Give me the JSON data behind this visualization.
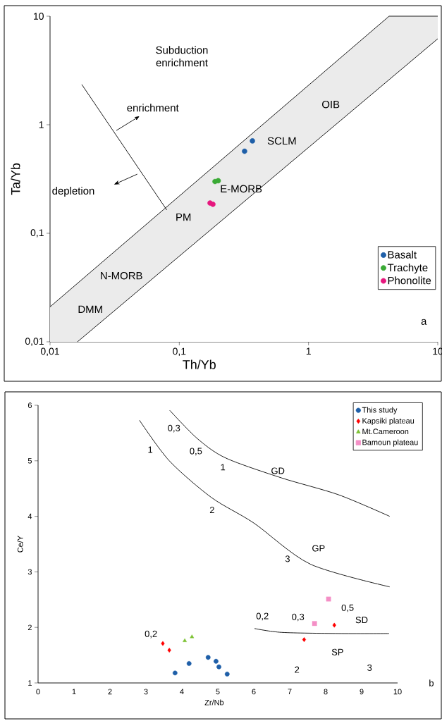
{
  "chart_data": [
    {
      "type": "scatter",
      "xlabel": "Th/Yb",
      "ylabel": "Ta/Yb",
      "log": "xy",
      "legend": "bottom right",
      "xlim": [
        0.01,
        10
      ],
      "ylim": [
        0.01,
        10
      ],
      "xticks": [
        {
          "value": 0.01,
          "label": "0,01"
        },
        {
          "value": 0.1,
          "label": "0,1"
        },
        1,
        10
      ],
      "yticks": [
        {
          "value": 0.01,
          "label": "0,01"
        },
        {
          "value": 0.1,
          "label": "0,1"
        },
        1,
        10
      ],
      "series": [
        {
          "type": "area",
          "color": "#ebebeb",
          "x": [
            0.01,
            4.2,
            10
          ],
          "values": [
            0.021,
            10,
            10
          ]
        },
        {
          "type": "area",
          "color": "#ffffff",
          "x": [
            0.0163,
            10
          ],
          "values": [
            0.01,
            6.2
          ]
        },
        {
          "type": "line",
          "color": "#000000",
          "x": [
            0.0176,
            0.08
          ],
          "values": [
            2.35,
            0.164
          ]
        },
        {
          "name": "Basalt",
          "marker": "circle",
          "color": "#1f5fa8",
          "x": [
            0.368,
            0.32
          ],
          "values": [
            0.71,
            0.57
          ]
        },
        {
          "name": "Trachyte",
          "marker": "circle",
          "color": "#3aaa35",
          "x": [
            0.189,
            0.2
          ],
          "values": [
            0.3,
            0.305
          ]
        },
        {
          "name": "Phonolite",
          "marker": "circle",
          "color": "#e6177e",
          "x": [
            0.173,
            0.182
          ],
          "values": [
            0.19,
            0.185
          ]
        }
      ],
      "annotations": [
        "Subduction enrichment",
        "enrichment",
        "depletion",
        "OIB",
        "SCLM",
        "E-MORB",
        "PM",
        "N-MORB",
        "DMM",
        "a"
      ]
    },
    {
      "type": "scatter",
      "xlabel": "Zr/Nb",
      "ylabel": "Ce/Y",
      "legend": "top right",
      "xlim": [
        0,
        10
      ],
      "ylim": [
        1,
        6
      ],
      "xticks": [
        0,
        1,
        2,
        3,
        4,
        5,
        6,
        7,
        8,
        9,
        10
      ],
      "yticks": [
        1,
        2,
        3,
        4,
        5,
        6
      ],
      "series": [
        {
          "type": "line",
          "color": "#000000",
          "x": [
            3.66,
            4.43,
            5.22,
            6.78,
            8.35,
            9.78
          ],
          "values": [
            5.91,
            5.4,
            5.05,
            4.69,
            4.39,
            4.0
          ]
        },
        {
          "type": "line",
          "color": "#000000",
          "x": [
            2.82,
            3.65,
            4.82,
            6.0,
            7.57,
            9.78
          ],
          "values": [
            5.73,
            5.0,
            4.34,
            3.88,
            3.14,
            2.73
          ]
        },
        {
          "type": "line",
          "color": "#000000",
          "x": [
            6.02,
            6.78,
            8.35,
            9.76
          ],
          "values": [
            1.98,
            1.91,
            1.89,
            1.89
          ]
        },
        {
          "name": "This study",
          "marker": "circle",
          "color": "#1f5fa8",
          "x": [
            3.81,
            4.2,
            4.73,
            4.95,
            5.03,
            5.26
          ],
          "values": [
            1.18,
            1.35,
            1.46,
            1.39,
            1.29,
            1.16
          ]
        },
        {
          "name": "Kapsiki plateau",
          "marker": "diamond",
          "color": "#ff0000",
          "x": [
            3.47,
            3.65,
            7.4,
            8.24
          ],
          "values": [
            1.71,
            1.59,
            1.78,
            2.04
          ]
        },
        {
          "name": "Mt.Cameroon",
          "marker": "triangle",
          "color": "#7dc234",
          "x": [
            4.08,
            4.28
          ],
          "values": [
            1.76,
            1.83
          ]
        },
        {
          "name": "Bamoun plateau",
          "marker": "square",
          "color": "#f48fc6",
          "x": [
            8.08,
            7.69
          ],
          "values": [
            2.51,
            2.07
          ]
        }
      ],
      "annotations": [
        "0,3",
        "1",
        "0,5",
        "1",
        "GD",
        "2",
        "GP",
        "3",
        "0,2",
        "0,2",
        "0,3",
        "0,5",
        "SD",
        "SP",
        "2",
        "3",
        "b"
      ]
    }
  ]
}
